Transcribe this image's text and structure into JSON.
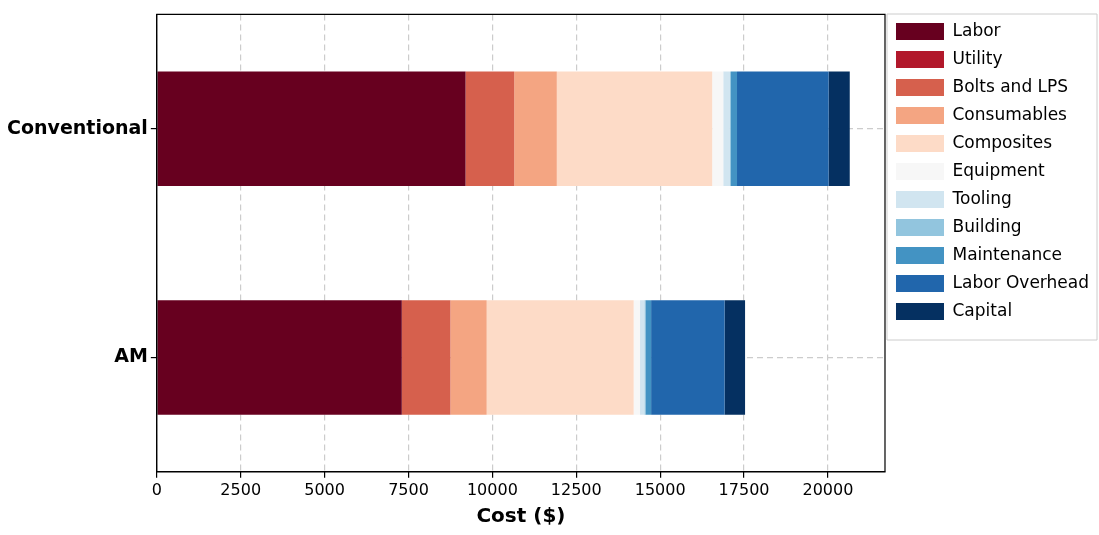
{
  "chart_data": {
    "type": "bar",
    "orientation": "horizontal",
    "stacked": true,
    "categories": [
      "Conventional",
      "AM"
    ],
    "xlabel": "Cost ($)",
    "xlim": [
      0,
      21700
    ],
    "xticks": [
      0,
      2500,
      5000,
      7500,
      10000,
      12500,
      15000,
      17500,
      20000
    ],
    "grid": true,
    "legend": "right",
    "series": [
      {
        "name": "Labor",
        "color": "#67001f",
        "values": [
          9200,
          7300
        ]
      },
      {
        "name": "Utility",
        "color": "#b2182b",
        "values": [
          null,
          null
        ]
      },
      {
        "name": "Bolts and LPS",
        "color": "#d6604d",
        "values": [
          1450,
          1450
        ]
      },
      {
        "name": "Consumables",
        "color": "#f4a582",
        "values": [
          1270,
          1080
        ]
      },
      {
        "name": "Composites",
        "color": "#fddbc7",
        "values": [
          4630,
          4380
        ]
      },
      {
        "name": "Equipment",
        "color": "#f7f7f7",
        "values": [
          330,
          190
        ]
      },
      {
        "name": "Tooling",
        "color": "#d1e5f0",
        "values": [
          200,
          130
        ]
      },
      {
        "name": "Building",
        "color": "#92c5de",
        "values": [
          30,
          30
        ]
      },
      {
        "name": "Maintenance",
        "color": "#4393c3",
        "values": [
          180,
          170
        ]
      },
      {
        "name": "Labor Overhead",
        "color": "#2166ac",
        "values": [
          2730,
          2190
        ]
      },
      {
        "name": "Capital",
        "color": "#053061",
        "values": [
          630,
          610
        ]
      }
    ]
  }
}
